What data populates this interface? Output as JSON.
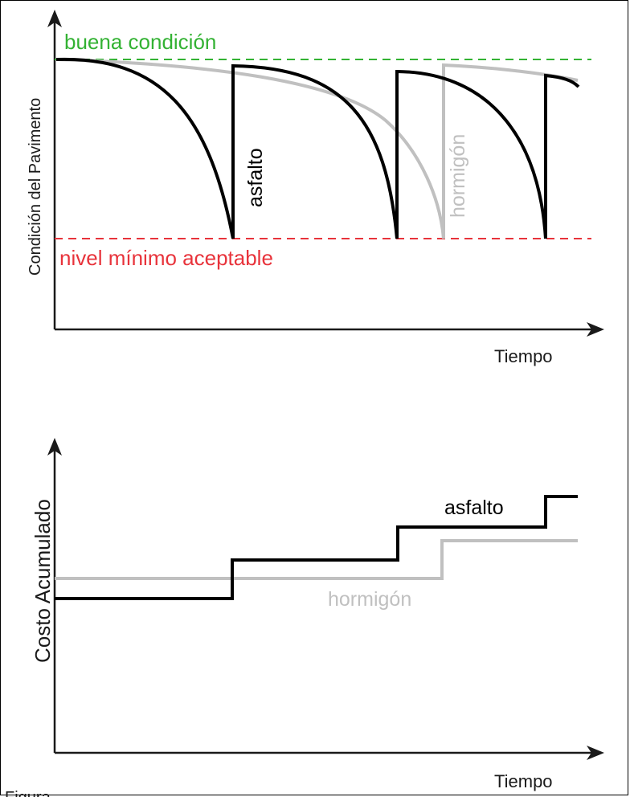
{
  "colors": {
    "axis": "#1a1a1a",
    "asfalto": "#000000",
    "hormigon": "#c0c0c0",
    "good": "#33b233",
    "min": "#e8333b"
  },
  "chart_data": [
    {
      "type": "line",
      "ylabel": "Condición del Pavimento",
      "xlabel": "Tiempo",
      "reference_lines": [
        {
          "label": "buena condición",
          "color": "#33b233"
        },
        {
          "label": "nivel mínimo aceptable",
          "color": "#e8333b"
        }
      ],
      "series": [
        {
          "name": "asfalto",
          "color": "#000000"
        },
        {
          "name": "hormigón",
          "color": "#c0c0c0"
        }
      ]
    },
    {
      "type": "line",
      "ylabel": "Costo Acumulado",
      "xlabel": "Tiempo",
      "series": [
        {
          "name": "asfalto",
          "color": "#000000"
        },
        {
          "name": "hormigón",
          "color": "#c0c0c0"
        }
      ]
    }
  ],
  "caption": "Figura"
}
